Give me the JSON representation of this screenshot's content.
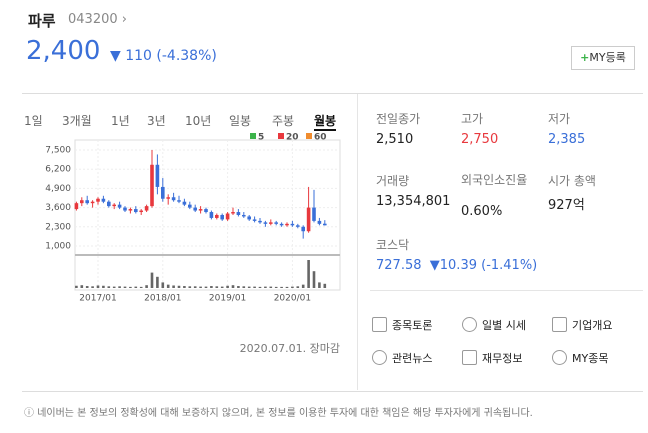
{
  "header": {
    "name": "파루",
    "code": "043200",
    "price": "2,400",
    "change": "110",
    "change_rate": "(-4.38%)",
    "my_button": "MY등록"
  },
  "tabs": [
    "1일",
    "3개월",
    "1년",
    "3년",
    "10년",
    "일봉",
    "주봉",
    "월봉"
  ],
  "selected_tab": 7,
  "chart": {
    "type": "candlestick",
    "legend": [
      {
        "name": "5",
        "color": "#3cb34a"
      },
      {
        "name": "20",
        "color": "#e8383d"
      },
      {
        "name": "60",
        "color": "#f08c2e"
      }
    ],
    "ylim": [
      1000,
      7500
    ],
    "yticks": [
      {
        "value": 7500,
        "label": "7,500"
      },
      {
        "value": 6200,
        "label": "6,200"
      },
      {
        "value": 4900,
        "label": "4,900"
      },
      {
        "value": 3600,
        "label": "3,600"
      },
      {
        "value": 2300,
        "label": "2,300"
      },
      {
        "value": 1000,
        "label": "1,000"
      }
    ],
    "xticks": [
      {
        "value": 4,
        "label": "2017/01"
      },
      {
        "value": 16,
        "label": "2018/01"
      },
      {
        "value": 28,
        "label": "2019/01"
      },
      {
        "value": 40,
        "label": "2020/01"
      }
    ],
    "up_color": "#e8383d",
    "down_color": "#3a6fd8",
    "candles": [
      [
        3500,
        4000,
        3400,
        3900
      ],
      [
        3900,
        4300,
        3700,
        4100
      ],
      [
        4100,
        4400,
        3800,
        3900
      ],
      [
        3900,
        4100,
        3600,
        4000
      ],
      [
        4000,
        4300,
        3800,
        4200
      ],
      [
        4200,
        4400,
        3900,
        4000
      ],
      [
        4000,
        4100,
        3600,
        3700
      ],
      [
        3700,
        3900,
        3500,
        3800
      ],
      [
        3800,
        4000,
        3500,
        3600
      ],
      [
        3600,
        3700,
        3300,
        3400
      ],
      [
        3400,
        3600,
        3200,
        3500
      ],
      [
        3500,
        3700,
        3200,
        3300
      ],
      [
        3300,
        3500,
        3100,
        3400
      ],
      [
        3400,
        3800,
        3300,
        3700
      ],
      [
        3700,
        7500,
        3600,
        6500
      ],
      [
        6500,
        7200,
        4500,
        5000
      ],
      [
        5000,
        5600,
        4000,
        4200
      ],
      [
        4200,
        4500,
        3800,
        4300
      ],
      [
        4300,
        4600,
        4000,
        4100
      ],
      [
        4100,
        4400,
        3900,
        4000
      ],
      [
        4000,
        4200,
        3700,
        3800
      ],
      [
        3800,
        4000,
        3500,
        3600
      ],
      [
        3600,
        3800,
        3300,
        3400
      ],
      [
        3400,
        3700,
        3200,
        3500
      ],
      [
        3500,
        3600,
        3200,
        3300
      ],
      [
        3300,
        3400,
        2800,
        2900
      ],
      [
        2900,
        3200,
        2800,
        3100
      ],
      [
        3100,
        3200,
        2700,
        2800
      ],
      [
        2800,
        3300,
        2700,
        3200
      ],
      [
        3200,
        3600,
        3100,
        3300
      ],
      [
        3300,
        3500,
        3000,
        3100
      ],
      [
        3100,
        3300,
        2900,
        3000
      ],
      [
        3000,
        3100,
        2700,
        2800
      ],
      [
        2800,
        3000,
        2600,
        2700
      ],
      [
        2700,
        2900,
        2500,
        2600
      ],
      [
        2600,
        2700,
        2300,
        2500
      ],
      [
        2500,
        2800,
        2400,
        2600
      ],
      [
        2600,
        2700,
        2400,
        2500
      ],
      [
        2500,
        2600,
        2300,
        2400
      ],
      [
        2400,
        2600,
        2300,
        2500
      ],
      [
        2500,
        2700,
        2300,
        2400
      ],
      [
        2400,
        2500,
        2200,
        2300
      ],
      [
        2300,
        2400,
        1500,
        2000
      ],
      [
        2000,
        5000,
        1900,
        3600
      ],
      [
        3600,
        4800,
        2600,
        2700
      ],
      [
        2700,
        2900,
        2400,
        2500
      ],
      [
        2510,
        2750,
        2385,
        2400
      ]
    ],
    "volume_lim": [
      0,
      100
    ],
    "volumes": [
      8,
      10,
      7,
      6,
      9,
      8,
      6,
      5,
      6,
      5,
      4,
      5,
      4,
      10,
      55,
      40,
      20,
      12,
      9,
      8,
      7,
      6,
      6,
      5,
      5,
      7,
      6,
      5,
      8,
      10,
      7,
      6,
      5,
      5,
      4,
      5,
      5,
      4,
      4,
      4,
      5,
      6,
      12,
      100,
      60,
      20,
      15
    ],
    "date": "2020.07.01. 장마감"
  },
  "info": [
    {
      "label": "전일종가",
      "value": "2,510"
    },
    {
      "label": "고가",
      "value": "2,750",
      "color": "#e8383d"
    },
    {
      "label": "저가",
      "value": "2,385",
      "color": "#3a6fd8"
    },
    {
      "label": "거래량",
      "value": "13,354,801"
    },
    {
      "label": "외국인소진율",
      "value": "0.60%"
    },
    {
      "label": "시가 총액",
      "value": "927억"
    }
  ],
  "index": {
    "label": "코스닥",
    "value": "727.58",
    "change": "10.39",
    "change_rate": "(-1.41%)"
  },
  "links": [
    "종목토론",
    "일별 시세",
    "기업개요",
    "관련뉴스",
    "재무정보",
    "MY종목"
  ],
  "footer": "네이버는 본 정보의 정확성에 대해 보증하지 않으며, 본 정보를 이용한 투자에 대한 책임은 해당 투자자에게 귀속됩니다."
}
